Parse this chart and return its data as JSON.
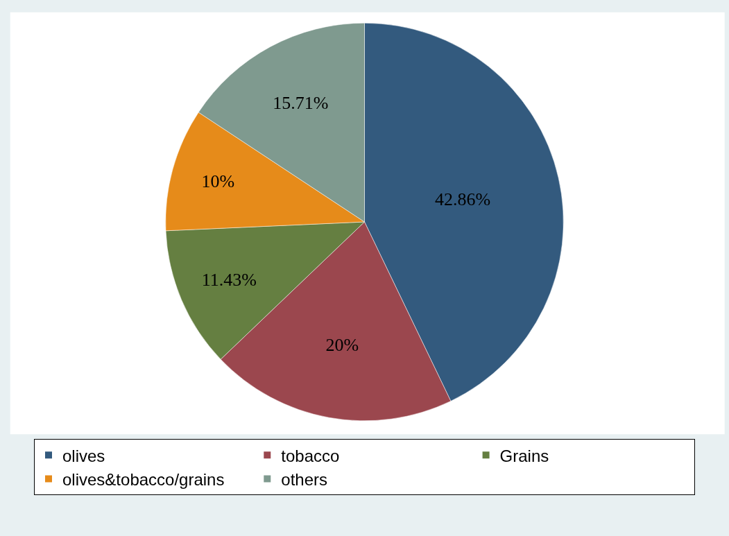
{
  "chart_data": {
    "type": "pie",
    "categories": [
      "olives",
      "tobacco",
      "Grains",
      "olives&tobacco/grains",
      "others"
    ],
    "values": [
      42.86,
      20,
      11.43,
      10,
      15.71
    ],
    "value_labels": [
      "42.86%",
      "20%",
      "11.43%",
      "10%",
      "15.71%"
    ],
    "colors": [
      "#335a7e",
      "#9b474e",
      "#657f41",
      "#e68b1a",
      "#7f9a8f"
    ],
    "legend": "bottom"
  }
}
